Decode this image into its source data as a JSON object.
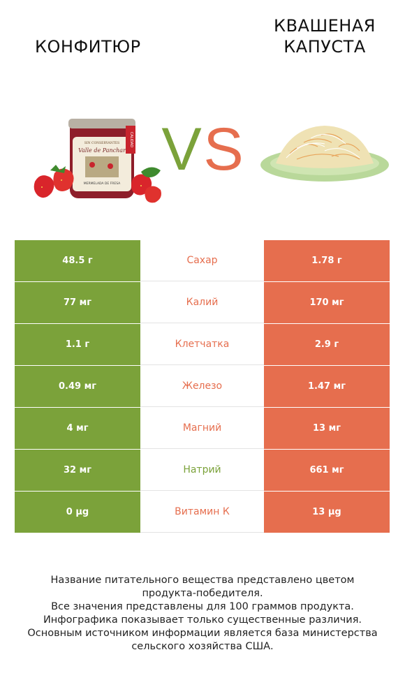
{
  "header": {
    "left_title": "КОНФИТЮР",
    "right_title": "КВАШЕНАЯ КАПУСТА"
  },
  "vs": {
    "v": "V",
    "s": "S",
    "v_color": "#7ba23a",
    "s_color": "#e66e4e"
  },
  "images": {
    "left": {
      "label_lines": [
        "SIN CONSERVANTES",
        "Valle de Panchar",
        "MERMELADA DE FRESA"
      ],
      "side_label": "CALIDAD"
    },
    "right": {}
  },
  "colors": {
    "green": "#7ba23a",
    "orange": "#e66e4e"
  },
  "rows": [
    {
      "left": "48.5 г",
      "name": "Сахар",
      "right": "1.78 г",
      "winner": "orange",
      "left_color": "#7ba23a",
      "right_color": "#e66e4e"
    },
    {
      "left": "77 мг",
      "name": "Калий",
      "right": "170 мг",
      "winner": "orange",
      "left_color": "#7ba23a",
      "right_color": "#e66e4e"
    },
    {
      "left": "1.1 г",
      "name": "Клетчатка",
      "right": "2.9 г",
      "winner": "orange",
      "left_color": "#7ba23a",
      "right_color": "#e66e4e"
    },
    {
      "left": "0.49 мг",
      "name": "Железо",
      "right": "1.47 мг",
      "winner": "orange",
      "left_color": "#7ba23a",
      "right_color": "#e66e4e"
    },
    {
      "left": "4 мг",
      "name": "Магний",
      "right": "13 мг",
      "winner": "orange",
      "left_color": "#7ba23a",
      "right_color": "#e66e4e"
    },
    {
      "left": "32 мг",
      "name": "Натрий",
      "right": "661 мг",
      "winner": "green",
      "left_color": "#7ba23a",
      "right_color": "#e66e4e"
    },
    {
      "left": "0 µg",
      "name": "Витамин К",
      "right": "13 µg",
      "winner": "orange",
      "left_color": "#7ba23a",
      "right_color": "#e66e4e"
    }
  ],
  "footer": {
    "lines": [
      "Название питательного вещества представлено цветом",
      "продукта-победителя.",
      "Все значения представлены для 100 граммов продукта.",
      "Инфографика показывает только существенные различия.",
      "Основным источником информации является база министерства",
      "сельского хозяйства США."
    ]
  }
}
